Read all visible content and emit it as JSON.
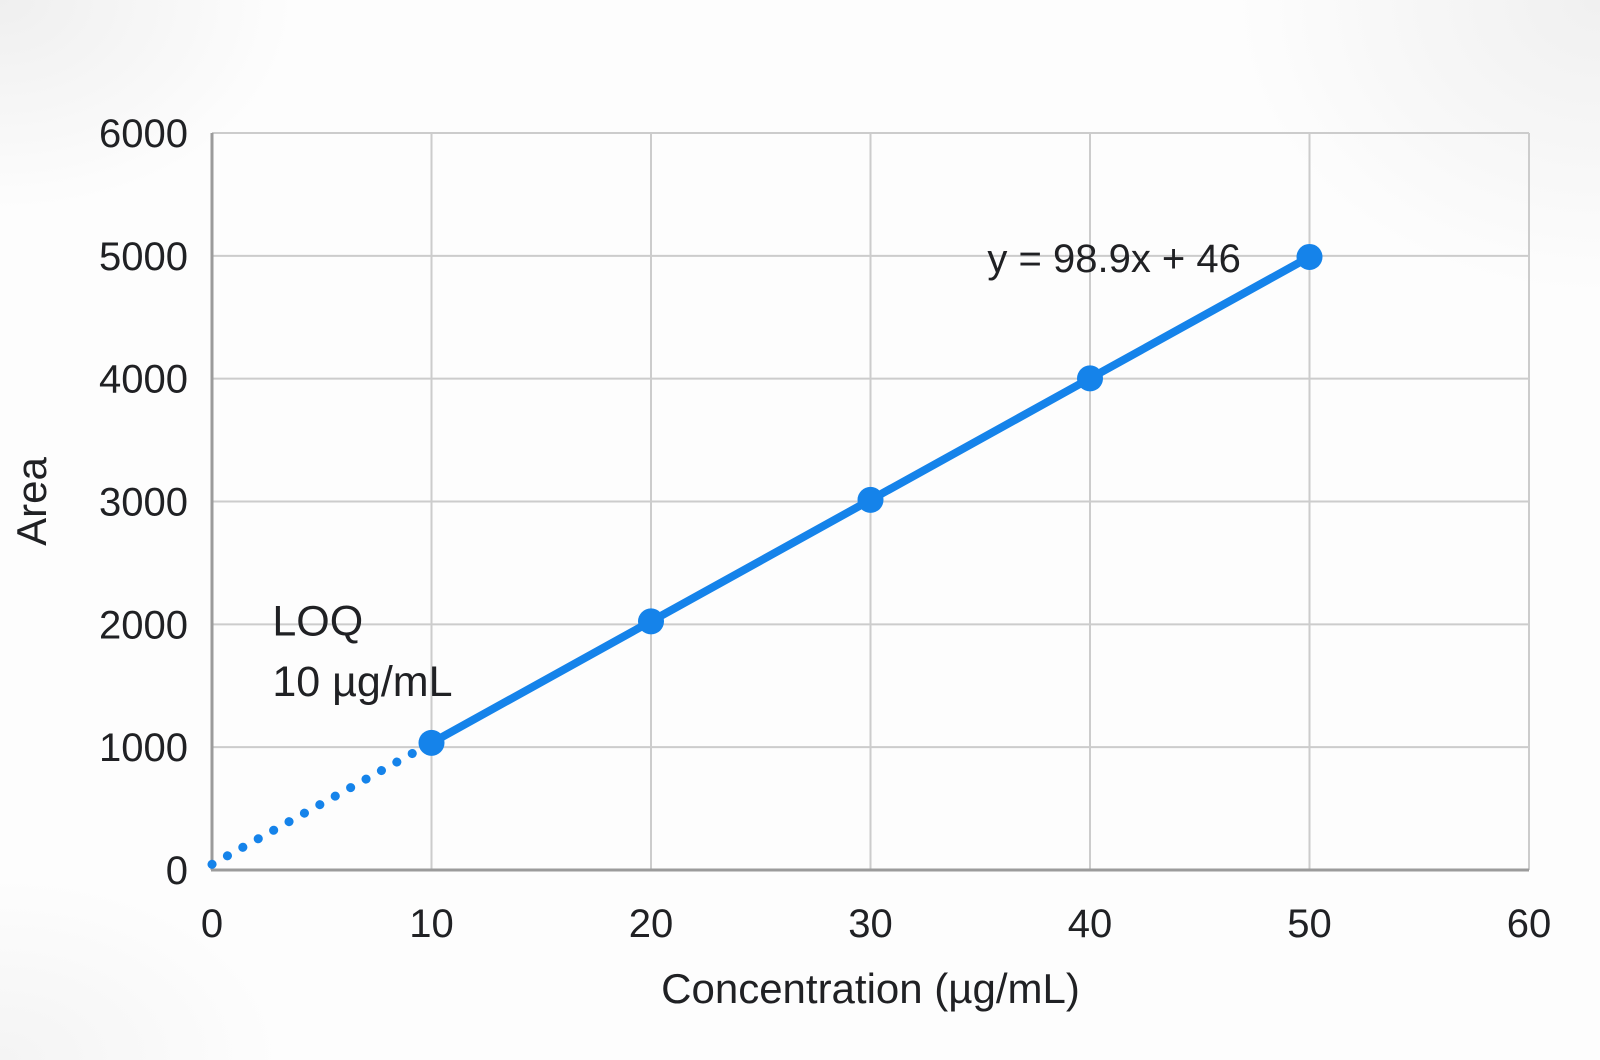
{
  "chart_data": {
    "type": "line",
    "title": "",
    "xlabel": "Concentration (µg/mL)",
    "ylabel": "Area",
    "xlim": [
      0,
      60
    ],
    "ylim": [
      0,
      6000
    ],
    "xticks": [
      0,
      10,
      20,
      30,
      40,
      50,
      60
    ],
    "yticks": [
      0,
      1000,
      2000,
      3000,
      4000,
      5000,
      6000
    ],
    "grid": true,
    "legend_position": "none",
    "trendline_equation": "y = 98.9x + 46",
    "series": [
      {
        "name": "extrapolation-below-loq",
        "style": "dotted",
        "marker": "none",
        "x": [
          0,
          10
        ],
        "y": [
          46,
          1035
        ]
      },
      {
        "name": "calibration-curve",
        "style": "solid",
        "marker": "circle",
        "x": [
          10,
          20,
          30,
          40,
          50
        ],
        "y": [
          1035,
          2024,
          3013,
          4002,
          4991
        ]
      }
    ],
    "annotations": [
      {
        "id": "trendline-equation",
        "text": "y = 98.9x + 46",
        "x": 41.1,
        "y": 4990,
        "anchor": "middle",
        "size": 40
      },
      {
        "id": "loq-label",
        "text": "LOQ",
        "x": 2.75,
        "y": 2030,
        "anchor": "start",
        "size": 43
      },
      {
        "id": "loq-value",
        "text": "10 µg/mL",
        "x": 2.75,
        "y": 1540,
        "anchor": "start",
        "size": 43
      }
    ],
    "colors": {
      "series": "#1583ea",
      "gridline": "#cccccc",
      "axis": "#9b9b9b",
      "text": "#202124"
    }
  }
}
